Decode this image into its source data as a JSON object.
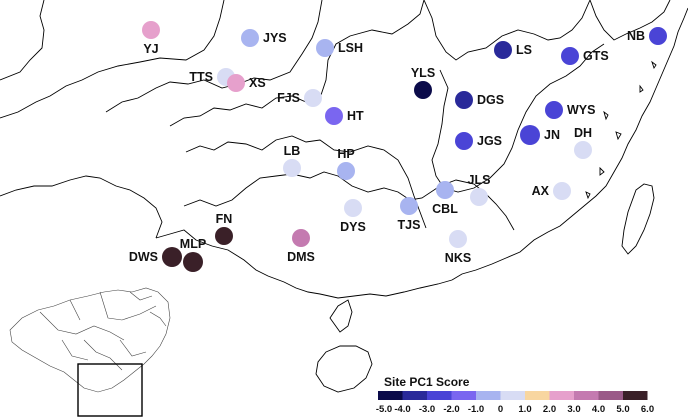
{
  "legend": {
    "title": "Site PC1 Score",
    "ticks": [
      "-5.0",
      "-4.0",
      "-3.0",
      "-2.0",
      "-1.0",
      "0",
      "1.0",
      "2.0",
      "3.0",
      "4.0",
      "5.0",
      "6.0"
    ],
    "colors": [
      "#0b0b4a",
      "#2a2a9a",
      "#4a44d6",
      "#7a66f0",
      "#a8b4f0",
      "#d8dcf4",
      "#f8d6a0",
      "#e6a0cc",
      "#c47ab0",
      "#9a5a88",
      "#3a2028"
    ]
  },
  "sites": [
    {
      "code": "YJ",
      "score": 2.5
    },
    {
      "code": "JYS",
      "score": -0.8
    },
    {
      "code": "LSH",
      "score": -0.5
    },
    {
      "code": "TTS",
      "score": 0.5
    },
    {
      "code": "XS",
      "score": 2.5
    },
    {
      "code": "FJS",
      "score": 0.5
    },
    {
      "code": "HT",
      "score": -2.0
    },
    {
      "code": "LB",
      "score": 0.5
    },
    {
      "code": "HP",
      "score": -0.6
    },
    {
      "code": "DYS",
      "score": 0.5
    },
    {
      "code": "TJS",
      "score": -0.7
    },
    {
      "code": "FN",
      "score": 5.5
    },
    {
      "code": "MLP",
      "score": 5.8
    },
    {
      "code": "DWS",
      "score": 5.8
    },
    {
      "code": "DMS",
      "score": 3.5
    },
    {
      "code": "YLS",
      "score": -5.0
    },
    {
      "code": "LS",
      "score": -3.5
    },
    {
      "code": "GTS",
      "score": -2.5
    },
    {
      "code": "NB",
      "score": -2.5
    },
    {
      "code": "DGS",
      "score": -4.0
    },
    {
      "code": "WYS",
      "score": -2.5
    },
    {
      "code": "JGS",
      "score": -2.5
    },
    {
      "code": "JN",
      "score": -2.5
    },
    {
      "code": "DH",
      "score": 0.5
    },
    {
      "code": "JLS",
      "score": 0.5
    },
    {
      "code": "CBL",
      "score": -0.5
    },
    {
      "code": "AX",
      "score": 0.5
    },
    {
      "code": "NKS",
      "score": 0.5
    }
  ]
}
